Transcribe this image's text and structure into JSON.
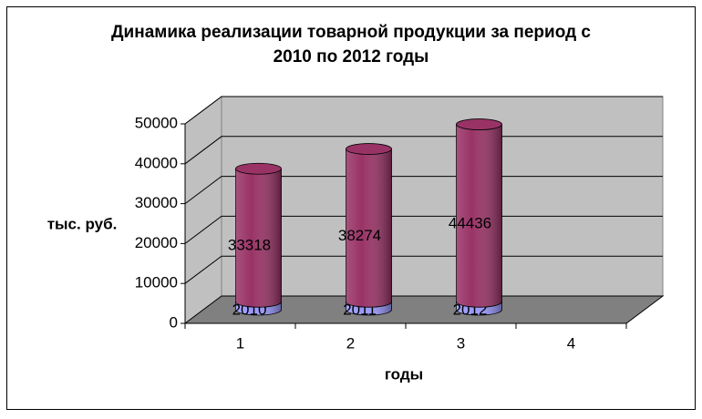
{
  "chart_data": {
    "type": "cylinder-stacked",
    "title": [
      "Динамика реализации товарной продукции за период с",
      "2010 по 2012 годы"
    ],
    "y_label": "тыс. руб.",
    "x_label": "годы",
    "categories": [
      "1",
      "2",
      "3",
      "4"
    ],
    "series": [
      {
        "color": "#9999ff",
        "values": [
          2010,
          2011,
          2012,
          null
        ]
      },
      {
        "color": "#993366",
        "values": [
          33318,
          38274,
          44436,
          null
        ]
      }
    ],
    "ylim": [
      0,
      50000
    ],
    "yticks": [
      0,
      10000,
      20000,
      30000,
      40000,
      50000
    ],
    "grid": true
  }
}
